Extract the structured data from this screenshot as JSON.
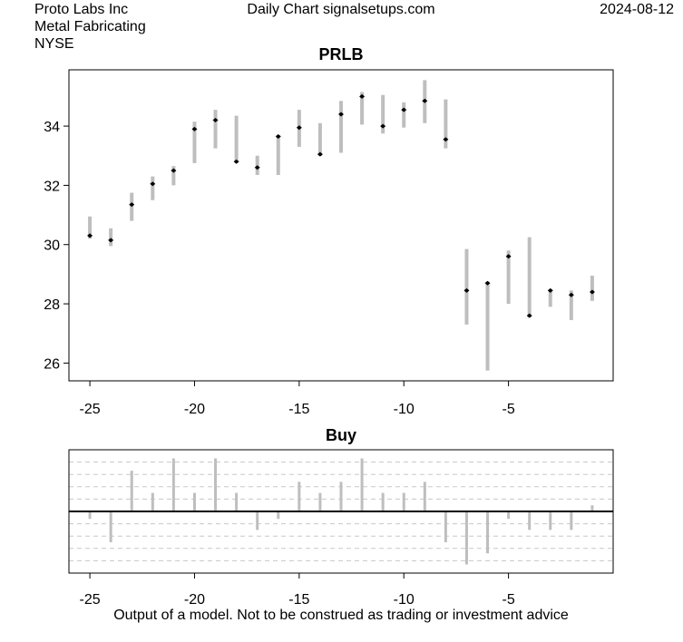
{
  "header": {
    "company": "Proto Labs Inc",
    "industry": "Metal Fabricating",
    "exchange": "NYSE",
    "center": "Daily Chart signalsetups.com",
    "date": "2024-08-12"
  },
  "footer": "Output of a model. Not to be construed as trading or investment advice",
  "colors": {
    "bar": "#bebebe",
    "close": "#000000",
    "grid": "#c8c8c8"
  },
  "chart_data": [
    {
      "type": "ohlc",
      "title": "PRLB",
      "xlabel": "",
      "ylabel": "",
      "xlim": [
        -26,
        0
      ],
      "ylim": [
        25.4,
        35.9
      ],
      "xticks": [
        -25,
        -20,
        -15,
        -10,
        -5
      ],
      "yticks": [
        26,
        28,
        30,
        32,
        34
      ],
      "series": [
        {
          "x": -25,
          "low": 30.2,
          "high": 30.95,
          "close": 30.3
        },
        {
          "x": -24,
          "low": 29.95,
          "high": 30.55,
          "close": 30.15
        },
        {
          "x": -23,
          "low": 30.8,
          "high": 31.75,
          "close": 31.35
        },
        {
          "x": -22,
          "low": 31.5,
          "high": 32.3,
          "close": 32.05
        },
        {
          "x": -21,
          "low": 32.0,
          "high": 32.65,
          "close": 32.5
        },
        {
          "x": -20,
          "low": 32.75,
          "high": 34.15,
          "close": 33.9
        },
        {
          "x": -19,
          "low": 33.25,
          "high": 34.55,
          "close": 34.2
        },
        {
          "x": -18,
          "low": 32.8,
          "high": 34.35,
          "close": 32.8
        },
        {
          "x": -17,
          "low": 32.35,
          "high": 33.0,
          "close": 32.6
        },
        {
          "x": -16,
          "low": 32.35,
          "high": 33.7,
          "close": 33.65
        },
        {
          "x": -15,
          "low": 33.3,
          "high": 34.55,
          "close": 33.95
        },
        {
          "x": -14,
          "low": 33.0,
          "high": 34.1,
          "close": 33.05
        },
        {
          "x": -13,
          "low": 33.1,
          "high": 34.85,
          "close": 34.4
        },
        {
          "x": -12,
          "low": 34.05,
          "high": 35.15,
          "close": 35.0
        },
        {
          "x": -11,
          "low": 33.75,
          "high": 35.05,
          "close": 34.0
        },
        {
          "x": -10,
          "low": 33.95,
          "high": 34.8,
          "close": 34.55
        },
        {
          "x": -9,
          "low": 34.1,
          "high": 35.55,
          "close": 34.85
        },
        {
          "x": -8,
          "low": 33.25,
          "high": 34.9,
          "close": 33.55
        },
        {
          "x": -7,
          "low": 27.3,
          "high": 29.85,
          "close": 28.45
        },
        {
          "x": -6,
          "low": 25.75,
          "high": 28.75,
          "close": 28.7
        },
        {
          "x": -5,
          "low": 28.0,
          "high": 29.8,
          "close": 29.6
        },
        {
          "x": -4,
          "low": 27.55,
          "high": 30.25,
          "close": 27.6
        },
        {
          "x": -3,
          "low": 27.9,
          "high": 28.5,
          "close": 28.45
        },
        {
          "x": -2,
          "low": 27.45,
          "high": 28.45,
          "close": 28.3
        },
        {
          "x": -1,
          "low": 28.1,
          "high": 28.95,
          "close": 28.4
        }
      ]
    },
    {
      "type": "bar",
      "title": "Buy",
      "xlabel": "",
      "ylabel": "",
      "xlim": [
        -26,
        0
      ],
      "ylim": [
        -5,
        5
      ],
      "xticks": [
        -25,
        -20,
        -15,
        -10,
        -5
      ],
      "gridlines": [
        -4,
        -3,
        -2,
        -1,
        1,
        2,
        3,
        4
      ],
      "grid": true,
      "x": [
        -25,
        -24,
        -23,
        -22,
        -21,
        -20,
        -19,
        -18,
        -17,
        -16,
        -15,
        -14,
        -13,
        -12,
        -11,
        -10,
        -9,
        -8,
        -7,
        -6,
        -5,
        -4,
        -3,
        -2,
        -1
      ],
      "values": [
        -0.6,
        -2.5,
        3.3,
        1.5,
        4.3,
        1.5,
        4.3,
        1.5,
        -1.5,
        -0.6,
        2.4,
        1.5,
        2.4,
        4.3,
        1.5,
        1.5,
        2.4,
        -2.5,
        -4.3,
        -3.4,
        -0.6,
        -1.5,
        -1.5,
        -1.5,
        0.5
      ]
    }
  ]
}
